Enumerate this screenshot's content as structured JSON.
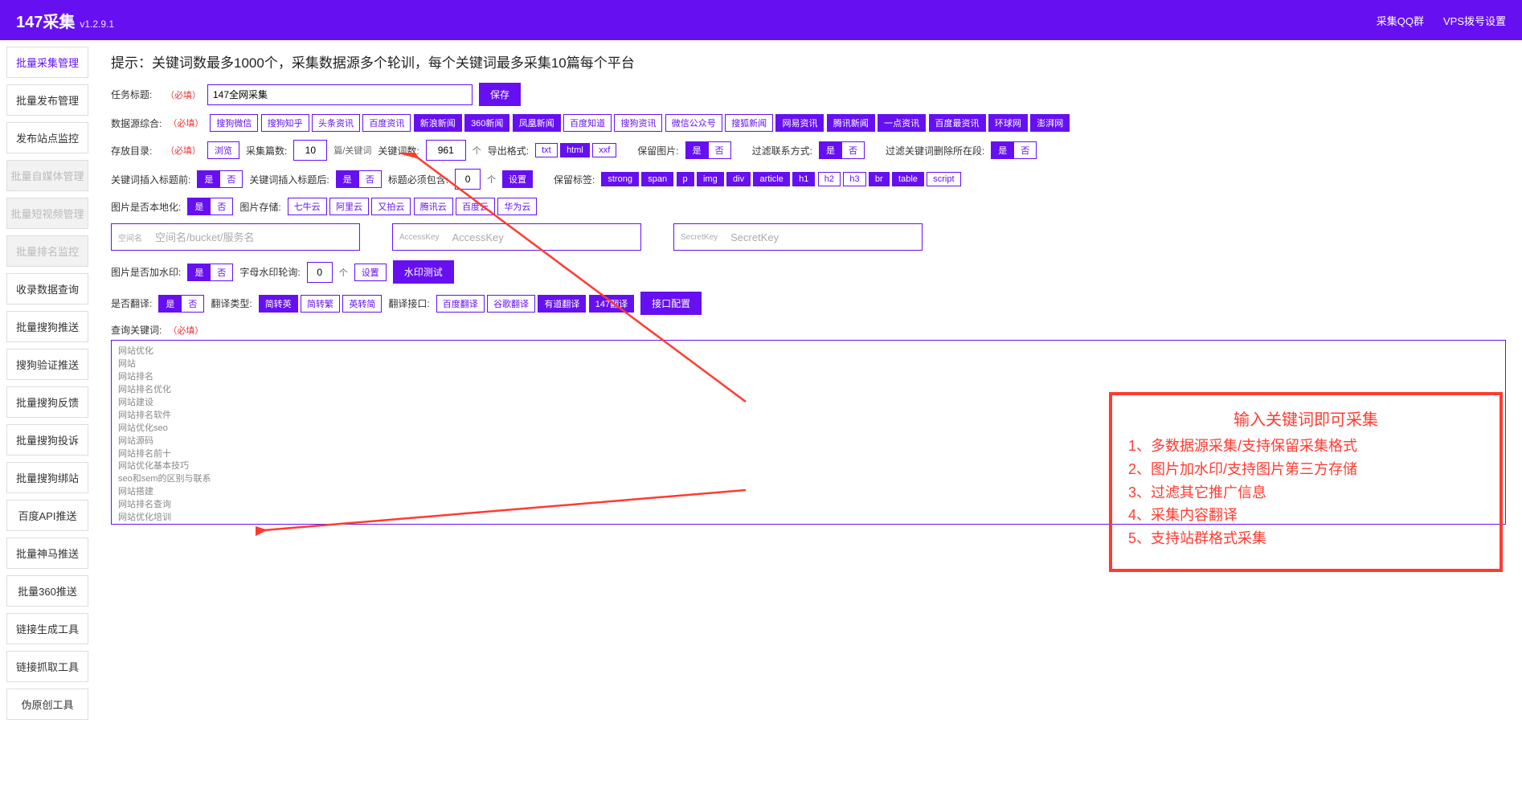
{
  "header": {
    "title": "147采集",
    "version": "v1.2.9.1",
    "link_qq": "采集QQ群",
    "link_vps": "VPS拨号设置"
  },
  "sidebar": {
    "items": [
      {
        "label": "批量采集管理",
        "state": "active"
      },
      {
        "label": "批量发布管理",
        "state": ""
      },
      {
        "label": "发布站点监控",
        "state": ""
      },
      {
        "label": "批量自媒体管理",
        "state": "disabled"
      },
      {
        "label": "批量短视频管理",
        "state": "disabled"
      },
      {
        "label": "批量排名监控",
        "state": "disabled"
      },
      {
        "label": "收录数据查询",
        "state": ""
      },
      {
        "label": "批量搜狗推送",
        "state": ""
      },
      {
        "label": "搜狗验证推送",
        "state": ""
      },
      {
        "label": "批量搜狗反馈",
        "state": ""
      },
      {
        "label": "批量搜狗投诉",
        "state": ""
      },
      {
        "label": "批量搜狗绑站",
        "state": ""
      },
      {
        "label": "百度API推送",
        "state": ""
      },
      {
        "label": "批量神马推送",
        "state": ""
      },
      {
        "label": "批量360推送",
        "state": ""
      },
      {
        "label": "链接生成工具",
        "state": ""
      },
      {
        "label": "链接抓取工具",
        "state": ""
      },
      {
        "label": "伪原创工具",
        "state": ""
      }
    ]
  },
  "main": {
    "hint": "提示：关键词数最多1000个，采集数据源多个轮训，每个关键词最多采集10篇每个平台",
    "task_title_label": "任务标题:",
    "required": "（必填）",
    "task_title_value": "147全网采集",
    "save_btn": "保存",
    "source_label": "数据源综合:",
    "sources": [
      {
        "label": "搜狗微信",
        "on": false
      },
      {
        "label": "搜狗知乎",
        "on": false
      },
      {
        "label": "头条资讯",
        "on": false
      },
      {
        "label": "百度资讯",
        "on": false
      },
      {
        "label": "新浪新闻",
        "on": true
      },
      {
        "label": "360新闻",
        "on": true
      },
      {
        "label": "凤凰新闻",
        "on": true
      },
      {
        "label": "百度知道",
        "on": false
      },
      {
        "label": "搜狗资讯",
        "on": false
      },
      {
        "label": "微信公众号",
        "on": false
      },
      {
        "label": "搜狐新闻",
        "on": false
      },
      {
        "label": "网易资讯",
        "on": true
      },
      {
        "label": "腾讯新闻",
        "on": true
      },
      {
        "label": "一点资讯",
        "on": true
      },
      {
        "label": "百度最资讯",
        "on": true
      },
      {
        "label": "环球网",
        "on": true
      },
      {
        "label": "澎湃网",
        "on": true
      }
    ],
    "store_dir_label": "存放目录:",
    "browse_btn": "浏览",
    "collect_count_label": "采集篇数:",
    "collect_count_value": "10",
    "collect_count_unit": "篇/关键词",
    "kw_count_label": "关键词数:",
    "kw_count_value": "961",
    "kw_count_unit": "个",
    "export_fmt_label": "导出格式:",
    "export_fmts": [
      {
        "label": "txt",
        "on": false
      },
      {
        "label": "html",
        "on": true
      },
      {
        "label": "xxf",
        "on": false
      }
    ],
    "keep_img_label": "保留图片:",
    "yes": "是",
    "no": "否",
    "keep_img_on": "是",
    "filter_contact_label": "过滤联系方式:",
    "filter_contact_on": "是",
    "filter_kw_del_label": "过滤关键词删除所在段:",
    "filter_kw_del_on": "是",
    "kw_insert_before_label": "关键词插入标题前:",
    "kw_insert_before_on": "是",
    "kw_insert_after_label": "关键词插入标题后:",
    "kw_insert_after_on": "是",
    "title_must_label": "标题必须包含:",
    "title_must_value": "0",
    "title_must_unit": "个",
    "title_must_set": "设置",
    "keep_tag_label": "保留标签:",
    "keep_tags": [
      {
        "label": "strong",
        "on": true
      },
      {
        "label": "span",
        "on": true
      },
      {
        "label": "p",
        "on": true
      },
      {
        "label": "img",
        "on": true
      },
      {
        "label": "div",
        "on": true
      },
      {
        "label": "article",
        "on": true
      },
      {
        "label": "h1",
        "on": true
      },
      {
        "label": "h2",
        "on": false
      },
      {
        "label": "h3",
        "on": false
      },
      {
        "label": "br",
        "on": true
      },
      {
        "label": "table",
        "on": true
      },
      {
        "label": "script",
        "on": false
      }
    ],
    "img_local_label": "图片是否本地化:",
    "img_local_on": "是",
    "img_store_label": "图片存储:",
    "img_stores": [
      {
        "label": "七牛云",
        "on": false
      },
      {
        "label": "阿里云",
        "on": false
      },
      {
        "label": "又拍云",
        "on": false
      },
      {
        "label": "腾讯云",
        "on": false
      },
      {
        "label": "百度云",
        "on": false
      },
      {
        "label": "华为云",
        "on": false
      }
    ],
    "space_label": "空间名",
    "space_ph": "空间名/bucket/服务名",
    "ak_label": "AccessKey",
    "ak_ph": "AccessKey",
    "sk_label": "SecretKey",
    "sk_ph": "SecretKey",
    "watermark_label": "图片是否加水印:",
    "watermark_on": "是",
    "wm_rotate_label": "字母水印轮询:",
    "wm_rotate_value": "0",
    "wm_rotate_unit": "个",
    "wm_set": "设置",
    "wm_test": "水印测试",
    "translate_label": "是否翻译:",
    "translate_on": "是",
    "trans_type_label": "翻译类型:",
    "trans_types": [
      {
        "label": "简转英",
        "on": true
      },
      {
        "label": "简转繁",
        "on": false
      },
      {
        "label": "英转简",
        "on": false
      }
    ],
    "trans_api_label": "翻译接口:",
    "trans_apis": [
      {
        "label": "百度翻译",
        "on": false
      },
      {
        "label": "谷歌翻译",
        "on": false
      },
      {
        "label": "有道翻译",
        "on": true
      },
      {
        "label": "147翻译",
        "on": true
      }
    ],
    "api_config": "接口配置",
    "query_kw_label": "查询关键词:",
    "textarea_content": "网站优化\n网站\n网站排名\n网站排名优化\n网站建设\n网站排名软件\n网站优化seo\n网站源码\n网站排名前十\n网站优化基本技巧\nseo和sem的区别与联系\n网站搭建\n网站排名查询\n网站优化培训\nseo是什么意思",
    "redbox": {
      "title": "输入关键词即可采集",
      "lines": [
        "1、多数据源采集/支持保留采集格式",
        "2、图片加水印/支持图片第三方存储",
        "3、过滤其它推广信息",
        "4、采集内容翻译",
        "5、支持站群格式采集"
      ]
    }
  },
  "colors": {
    "primary": "#6610f2",
    "red": "#ff3b30"
  }
}
